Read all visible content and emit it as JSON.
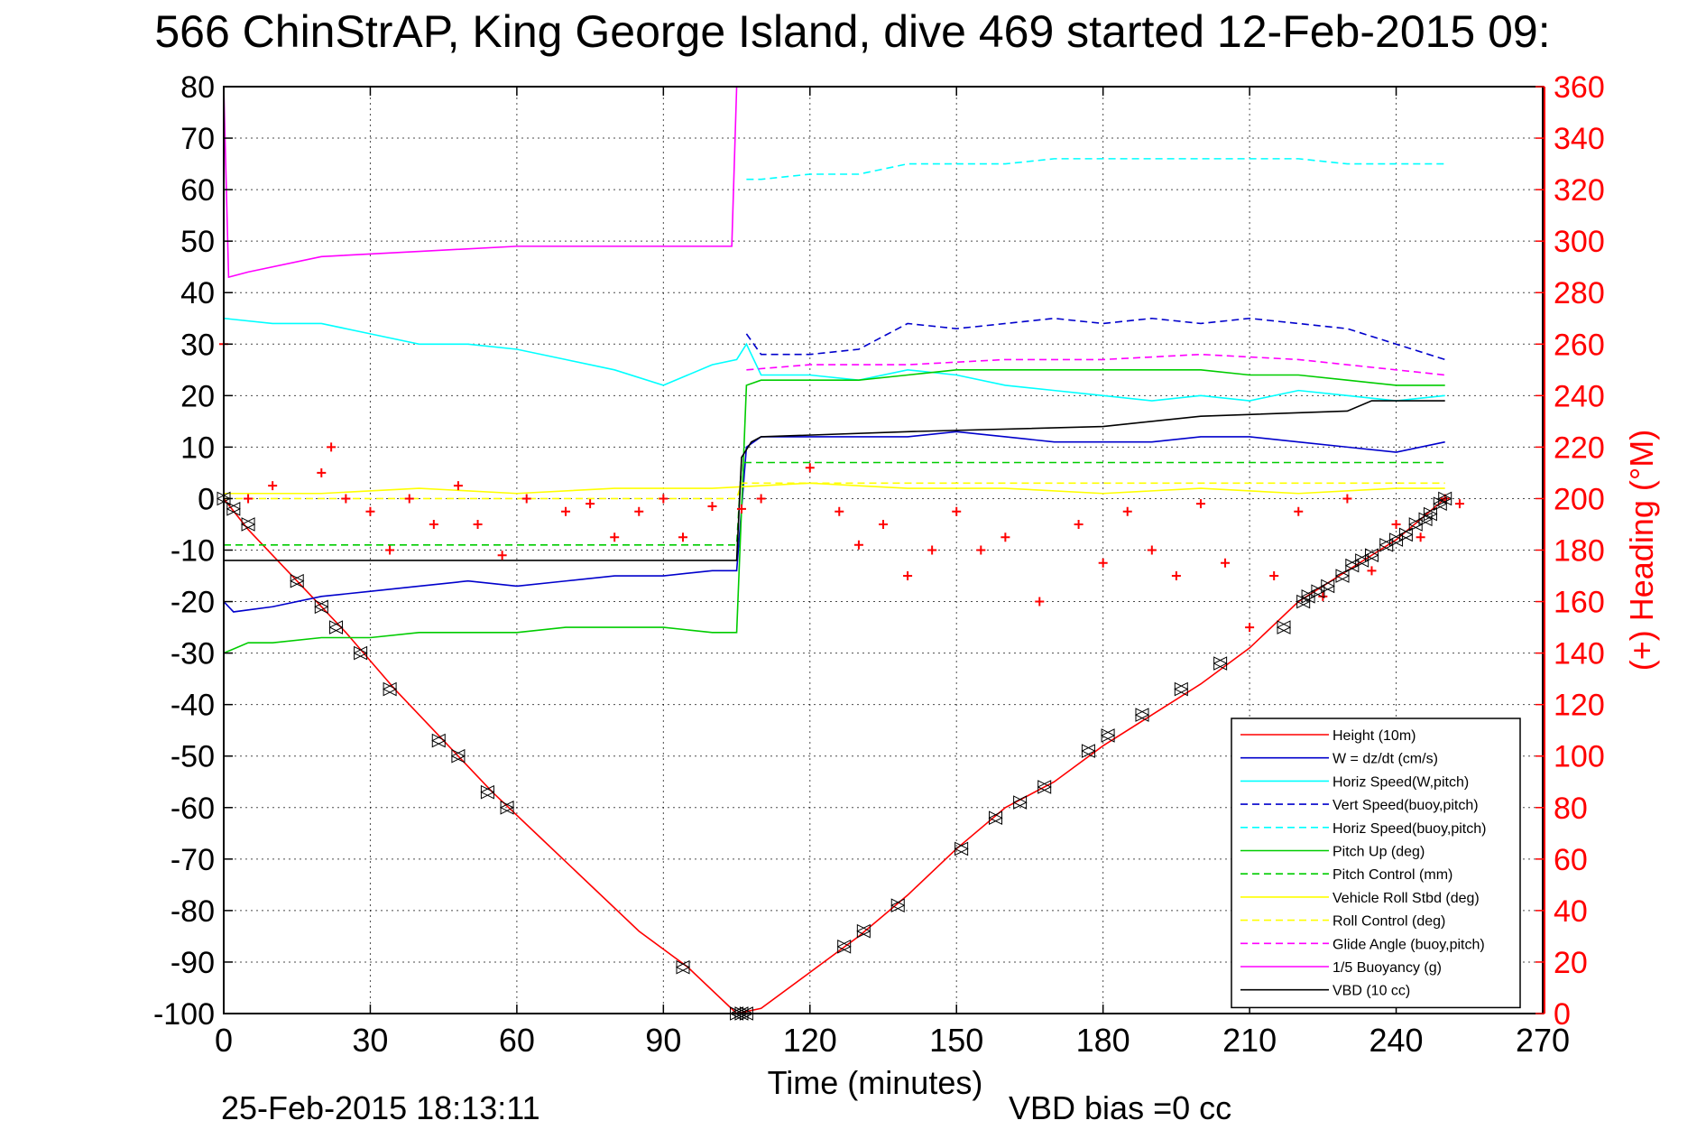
{
  "chart_data": {
    "type": "line",
    "title": "566 ChinStrAP, King George Island, dive 469 started 12-Feb-2015 09:",
    "xlabel": "Time (minutes)",
    "ylabel_left": "",
    "ylabel_right": "(+) Heading (°M)",
    "xlim": [
      0,
      270
    ],
    "ylim_left": [
      -100,
      80
    ],
    "ylim_right": [
      0,
      360
    ],
    "x_ticks": [
      "0",
      "30",
      "60",
      "90",
      "120",
      "150",
      "180",
      "210",
      "240",
      "270"
    ],
    "y_left_ticks": [
      "80",
      "70",
      "60",
      "50",
      "40",
      "30",
      "20",
      "10",
      "0",
      "-10",
      "-20",
      "-30",
      "-40",
      "-50",
      "-60",
      "-70",
      "-80",
      "-90",
      "-100"
    ],
    "y_right_ticks": [
      "360",
      "340",
      "320",
      "300",
      "280",
      "260",
      "240",
      "220",
      "200",
      "180",
      "160",
      "140",
      "120",
      "100",
      "80",
      "60",
      "40",
      "20",
      "0"
    ],
    "grid": true,
    "legend_position": "bottom-right",
    "footer_left": "25-Feb-2015 18:13:11",
    "footer_right": "VBD bias =0 cc",
    "colors": {
      "height": "#ff0000",
      "w": "#0000cc",
      "horiz_speed": "#00ffff",
      "pitch_up": "#00cc00",
      "pitch_control": "#00cc00",
      "roll": "#ffff00",
      "glide_angle": "#ff00ff",
      "buoyancy": "#ff00ff",
      "vbd": "#000000",
      "heading": "#ff0000",
      "right_axis": "#ff0000"
    },
    "series": [
      {
        "name": "Height (10m)",
        "style": "solid",
        "color": "#ff0000",
        "x": [
          0,
          5,
          15,
          25,
          35,
          45,
          55,
          65,
          75,
          85,
          95,
          105,
          110,
          120,
          130,
          140,
          150,
          160,
          170,
          180,
          190,
          200,
          210,
          220,
          230,
          240,
          245,
          250
        ],
        "y": [
          0,
          -6,
          -16,
          -26,
          -37,
          -47,
          -57,
          -66,
          -75,
          -84,
          -91,
          -100,
          -99,
          -92,
          -85,
          -77,
          -68,
          -60,
          -55,
          -48,
          -42,
          -36,
          -29,
          -20,
          -14,
          -8,
          -4,
          0
        ]
      },
      {
        "name": "W = dz/dt (cm/s)",
        "style": "solid",
        "color": "#0000cc",
        "x": [
          0,
          2,
          10,
          20,
          30,
          40,
          50,
          60,
          70,
          80,
          90,
          100,
          105,
          107,
          110,
          120,
          130,
          140,
          150,
          160,
          170,
          180,
          190,
          200,
          210,
          220,
          230,
          240,
          250
        ],
        "y": [
          -20,
          -22,
          -21,
          -19,
          -18,
          -17,
          -16,
          -17,
          -16,
          -15,
          -15,
          -14,
          -14,
          10,
          12,
          12,
          12,
          12,
          13,
          12,
          11,
          11,
          11,
          12,
          12,
          11,
          10,
          9,
          11
        ]
      },
      {
        "name": "Horiz Speed(W,pitch)",
        "style": "solid",
        "color": "#00ffff",
        "x": [
          0,
          10,
          20,
          30,
          40,
          50,
          60,
          70,
          80,
          90,
          100,
          105,
          107,
          110,
          120,
          130,
          140,
          150,
          160,
          170,
          180,
          190,
          200,
          210,
          220,
          230,
          240,
          250
        ],
        "y": [
          35,
          34,
          34,
          32,
          30,
          30,
          29,
          27,
          25,
          22,
          26,
          27,
          30,
          24,
          24,
          23,
          25,
          24,
          22,
          21,
          20,
          19,
          20,
          19,
          21,
          20,
          19,
          20
        ]
      },
      {
        "name": "Vert Speed(buoy,pitch)",
        "style": "dashed",
        "color": "#0000cc",
        "x": [
          107,
          110,
          120,
          130,
          140,
          150,
          160,
          170,
          180,
          190,
          200,
          210,
          220,
          230,
          240,
          250
        ],
        "y": [
          32,
          28,
          28,
          29,
          34,
          33,
          34,
          35,
          34,
          35,
          34,
          35,
          34,
          33,
          30,
          27
        ]
      },
      {
        "name": "Horiz Speed(buoy,pitch)",
        "style": "dashed",
        "color": "#00ffff",
        "x": [
          107,
          110,
          120,
          130,
          140,
          150,
          160,
          170,
          180,
          190,
          200,
          210,
          220,
          230,
          240,
          250
        ],
        "y": [
          62,
          62,
          63,
          63,
          65,
          65,
          65,
          66,
          66,
          66,
          66,
          66,
          66,
          65,
          65,
          65
        ]
      },
      {
        "name": "Pitch Up (deg)",
        "style": "solid",
        "color": "#00cc00",
        "x": [
          0,
          5,
          10,
          20,
          30,
          40,
          50,
          60,
          70,
          80,
          90,
          100,
          105,
          107,
          110,
          120,
          130,
          140,
          150,
          160,
          170,
          180,
          190,
          200,
          210,
          220,
          230,
          240,
          250
        ],
        "y": [
          -30,
          -28,
          -28,
          -27,
          -27,
          -26,
          -26,
          -26,
          -25,
          -25,
          -25,
          -26,
          -26,
          22,
          23,
          23,
          23,
          24,
          25,
          25,
          25,
          25,
          25,
          25,
          24,
          24,
          23,
          22,
          22
        ]
      },
      {
        "name": "Pitch Control (mm)",
        "style": "dashed",
        "color": "#00cc00",
        "x": [
          0,
          105,
          106,
          250
        ],
        "y": [
          -9,
          -9,
          7,
          7
        ]
      },
      {
        "name": "Vehicle Roll Stbd (deg)",
        "style": "solid",
        "color": "#ffff00",
        "x": [
          0,
          20,
          40,
          60,
          80,
          100,
          120,
          140,
          160,
          180,
          200,
          220,
          240,
          250
        ],
        "y": [
          1,
          1,
          2,
          1,
          2,
          2,
          3,
          2,
          2,
          1,
          2,
          1,
          2,
          2
        ]
      },
      {
        "name": "Roll Control (deg)",
        "style": "dashed",
        "color": "#ffff00",
        "x": [
          0,
          105,
          106,
          250
        ],
        "y": [
          0,
          0,
          3,
          3
        ]
      },
      {
        "name": "Glide Angle (buoy,pitch)",
        "style": "dashed",
        "color": "#ff00ff",
        "x": [
          107,
          120,
          140,
          160,
          180,
          200,
          220,
          240,
          250
        ],
        "y": [
          25,
          26,
          26,
          27,
          27,
          28,
          27,
          25,
          24
        ]
      },
      {
        "name": "1/5 Buoyancy (g)",
        "style": "solid",
        "color": "#ff00ff",
        "x": [
          0,
          1,
          5,
          20,
          40,
          60,
          80,
          104,
          105
        ],
        "y": [
          80,
          43,
          44,
          47,
          48,
          49,
          49,
          49,
          80
        ]
      },
      {
        "name": "VBD (10 cc)",
        "style": "solid",
        "color": "#000000",
        "x": [
          0,
          2,
          105,
          106,
          108,
          110,
          140,
          180,
          200,
          230,
          235,
          250
        ],
        "y": [
          -12,
          -12,
          -12,
          8,
          11,
          12,
          13,
          14,
          16,
          17,
          19,
          19
        ]
      }
    ],
    "heading": {
      "color": "#ff0000",
      "x": [
        0,
        5,
        10,
        20,
        22,
        25,
        30,
        34,
        38,
        43,
        48,
        52,
        57,
        62,
        70,
        75,
        80,
        85,
        90,
        94,
        100,
        106,
        110,
        120,
        126,
        130,
        135,
        140,
        145,
        150,
        155,
        160,
        167,
        175,
        180,
        185,
        190,
        195,
        200,
        205,
        210,
        215,
        220,
        225,
        230,
        235,
        240,
        245,
        250,
        253
      ],
      "y": [
        260,
        200,
        205,
        210,
        220,
        200,
        195,
        180,
        200,
        190,
        205,
        190,
        178,
        200,
        195,
        198,
        185,
        195,
        200,
        185,
        197,
        196,
        200,
        212,
        195,
        182,
        190,
        170,
        180,
        195,
        180,
        185,
        160,
        190,
        175,
        195,
        180,
        170,
        198,
        175,
        150,
        170,
        195,
        162,
        200,
        172,
        190,
        185,
        200,
        198
      ]
    },
    "markers": {
      "x": [
        0,
        2,
        5,
        15,
        20,
        23,
        28,
        34,
        44,
        48,
        54,
        58,
        94,
        105,
        106,
        107,
        127,
        131,
        138,
        151,
        158,
        163,
        168,
        177,
        181,
        188,
        196,
        204,
        217,
        221,
        222,
        224,
        226,
        229,
        231,
        233,
        235,
        238,
        240,
        242,
        244,
        246,
        247,
        249,
        250
      ],
      "y": [
        0,
        -2,
        -5,
        -16,
        -21,
        -25,
        -30,
        -37,
        -47,
        -50,
        -57,
        -60,
        -91,
        -100,
        -100,
        -100,
        -87,
        -84,
        -79,
        -68,
        -62,
        -59,
        -56,
        -49,
        -46,
        -42,
        -37,
        -32,
        -25,
        -20,
        -19,
        -18,
        -17,
        -15,
        -13,
        -12,
        -11,
        -9,
        -8,
        -7,
        -5,
        -4,
        -3,
        -1,
        0
      ]
    }
  }
}
